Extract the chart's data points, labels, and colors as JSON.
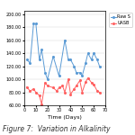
{
  "title": "Figure 7:  Variation in Alkalinity",
  "xlabel": "Time (Days)",
  "xlim": [
    0,
    70
  ],
  "ylim": [
    60,
    205
  ],
  "yticks": [
    60.0,
    80.0,
    100.0,
    120.0,
    140.0,
    160.0,
    180.0,
    200.0
  ],
  "xticks": [
    0,
    10,
    20,
    30,
    40,
    50,
    60,
    70
  ],
  "blue_x": [
    2,
    5,
    8,
    10,
    13,
    15,
    18,
    20,
    25,
    30,
    35,
    38,
    40,
    43,
    45,
    48,
    50,
    53,
    55,
    58,
    60,
    63,
    65
  ],
  "blue_y": [
    130,
    125,
    185,
    185,
    130,
    145,
    110,
    100,
    135,
    105,
    160,
    130,
    130,
    120,
    110,
    110,
    105,
    125,
    140,
    130,
    140,
    130,
    120
  ],
  "red_x": [
    2,
    5,
    8,
    10,
    13,
    15,
    18,
    20,
    25,
    28,
    30,
    33,
    35,
    38,
    40,
    43,
    45,
    48,
    50,
    53,
    55,
    58,
    60,
    63,
    65
  ],
  "red_y": [
    88,
    82,
    85,
    80,
    75,
    62,
    95,
    90,
    87,
    82,
    87,
    90,
    80,
    100,
    77,
    85,
    90,
    98,
    80,
    96,
    102,
    95,
    92,
    82,
    80
  ],
  "blue_color": "#5B9BD5",
  "red_color": "#FF6060",
  "blue_label": "Raw S",
  "red_label": "UASB",
  "legend_fontsize": 3.5,
  "axis_fontsize": 4.5,
  "tick_fontsize": 3.5,
  "title_fontsize": 5.5,
  "bg_color": "#ffffff"
}
